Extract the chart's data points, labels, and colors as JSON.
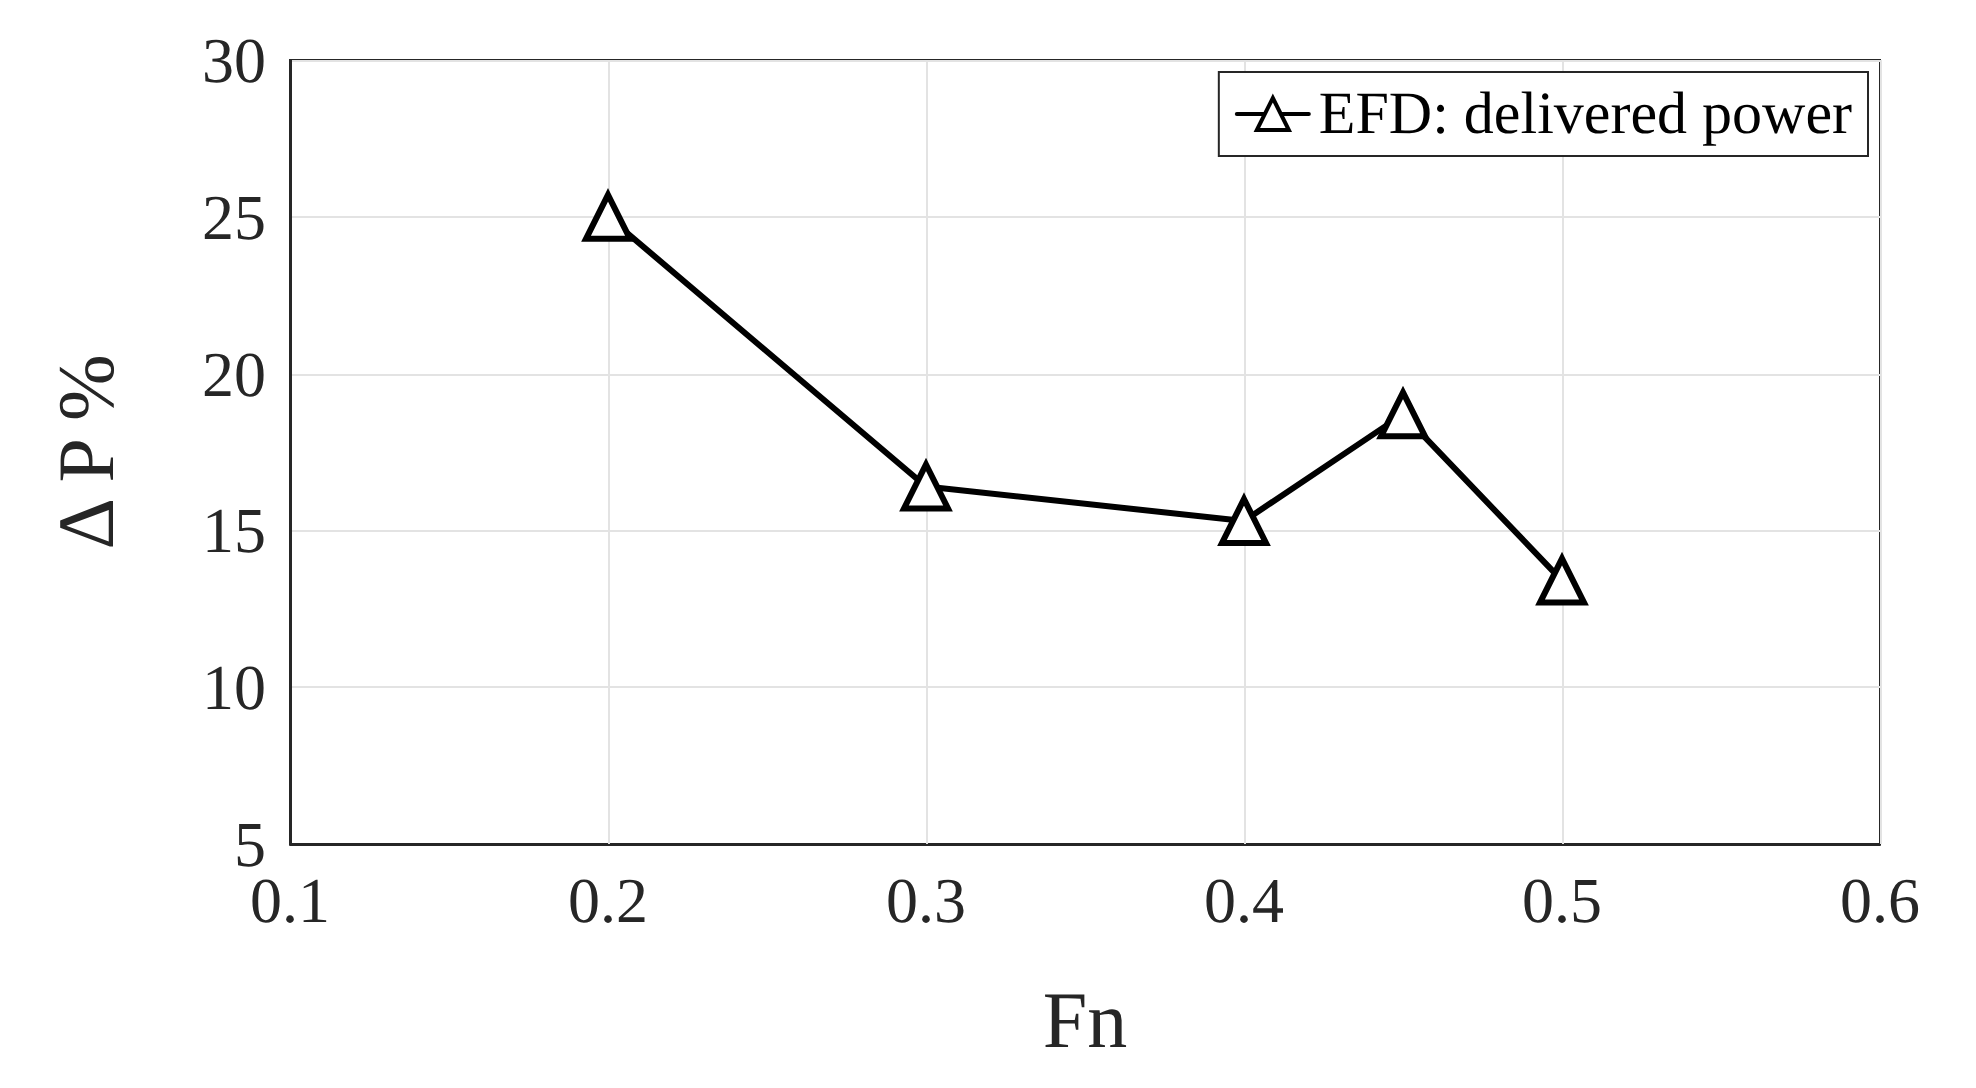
{
  "chart_data": {
    "type": "line",
    "xlabel": "Fn",
    "ylabel": "Δ P %",
    "x": [
      0.2,
      0.3,
      0.4,
      0.45,
      0.5
    ],
    "series": [
      {
        "name": "EFD: delivered power",
        "color": "#000000",
        "values": [
          25.0,
          16.4,
          15.3,
          18.7,
          13.4
        ]
      }
    ],
    "xlim": [
      0.1,
      0.6
    ],
    "xticks": [
      0.1,
      0.2,
      0.3,
      0.4,
      0.5,
      0.6
    ],
    "ylim": [
      5,
      30
    ],
    "yticks": [
      5,
      10,
      15,
      20,
      25,
      30
    ],
    "grid": true,
    "legend": "top right",
    "marker": "triangle",
    "line_style": "solid"
  }
}
